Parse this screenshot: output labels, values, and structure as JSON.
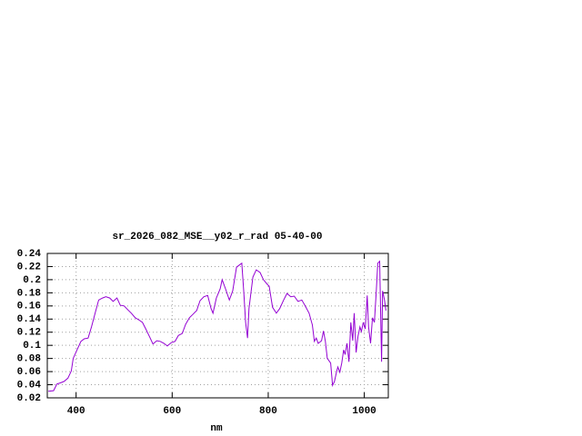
{
  "chart_data": {
    "type": "line",
    "title": "sr_2026_082_MSE__y02_r_rad 05-40-00",
    "x_label": "nm",
    "xlim": [
      340,
      1050
    ],
    "xticks": [
      400,
      600,
      800,
      1000
    ],
    "ylim": [
      0.02,
      0.24
    ],
    "yticks": [
      0.02,
      0.04,
      0.06,
      0.08,
      0.1,
      0.12,
      0.14,
      0.16,
      0.18,
      0.2,
      0.22,
      0.24
    ],
    "grid": true,
    "x": [
      342,
      353,
      360,
      368,
      375,
      383,
      390,
      394,
      402,
      410,
      417,
      425,
      432,
      440,
      447,
      455,
      462,
      470,
      477,
      485,
      492,
      500,
      508,
      515,
      523,
      530,
      538,
      545,
      553,
      560,
      568,
      575,
      583,
      590,
      598,
      606,
      613,
      621,
      628,
      636,
      643,
      651,
      658,
      666,
      674,
      681,
      685,
      692,
      700,
      704,
      711,
      719,
      726,
      734,
      741,
      745,
      749,
      753,
      757,
      760,
      768,
      775,
      783,
      790,
      798,
      802,
      809,
      817,
      824,
      832,
      839,
      847,
      854,
      862,
      870,
      877,
      885,
      892,
      896,
      900,
      904,
      911,
      915,
      919,
      923,
      930,
      934,
      938,
      942,
      945,
      949,
      953,
      957,
      960,
      964,
      968,
      972,
      976,
      979,
      983,
      987,
      991,
      994,
      998,
      1002,
      1006,
      1009,
      1013,
      1017,
      1021,
      1025,
      1028,
      1032,
      1036,
      1038,
      1042,
      1045
    ],
    "series": [
      {
        "color": "#9400d3",
        "values": [
          0.03,
          0.031,
          0.041,
          0.043,
          0.045,
          0.05,
          0.061,
          0.08,
          0.093,
          0.106,
          0.11,
          0.111,
          0.128,
          0.15,
          0.169,
          0.172,
          0.174,
          0.172,
          0.167,
          0.172,
          0.161,
          0.16,
          0.154,
          0.149,
          0.142,
          0.139,
          0.135,
          0.125,
          0.113,
          0.102,
          0.107,
          0.106,
          0.103,
          0.099,
          0.104,
          0.106,
          0.115,
          0.118,
          0.132,
          0.142,
          0.147,
          0.153,
          0.168,
          0.174,
          0.176,
          0.156,
          0.149,
          0.172,
          0.186,
          0.2,
          0.186,
          0.169,
          0.183,
          0.219,
          0.223,
          0.225,
          0.183,
          0.135,
          0.111,
          0.156,
          0.204,
          0.215,
          0.211,
          0.2,
          0.193,
          0.19,
          0.158,
          0.149,
          0.156,
          0.169,
          0.179,
          0.174,
          0.175,
          0.167,
          0.169,
          0.16,
          0.149,
          0.131,
          0.106,
          0.111,
          0.103,
          0.107,
          0.122,
          0.106,
          0.08,
          0.073,
          0.039,
          0.045,
          0.059,
          0.067,
          0.059,
          0.073,
          0.093,
          0.086,
          0.103,
          0.075,
          0.135,
          0.107,
          0.149,
          0.089,
          0.114,
          0.128,
          0.121,
          0.135,
          0.125,
          0.176,
          0.128,
          0.103,
          0.142,
          0.135,
          0.183,
          0.225,
          0.228,
          0.075,
          0.183,
          0.169,
          0.153
        ]
      }
    ]
  }
}
